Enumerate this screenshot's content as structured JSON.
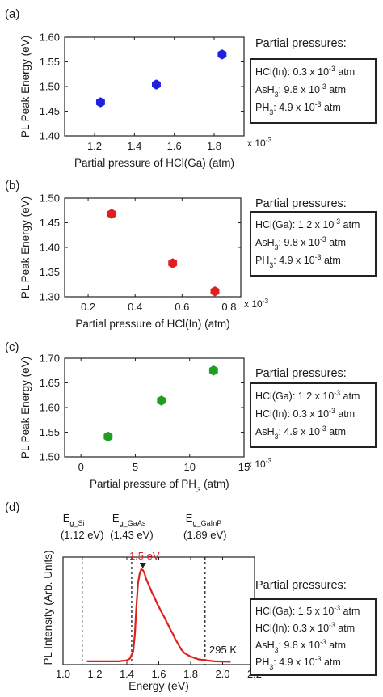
{
  "figure": {
    "panels": [
      {
        "letter": "(a)",
        "partial_title": "Partial pressures:",
        "conditions": [
          {
            "species": "HCl(In)",
            "sub": "",
            "value": "0.3 x 10",
            "exp": "-3",
            "unit": " atm"
          },
          {
            "species": "AsH",
            "sub": "3",
            "value": "9.8 x 10",
            "exp": "-3",
            "unit": " atm"
          },
          {
            "species": "PH",
            "sub": "3",
            "value": "4.9 x 10",
            "exp": "-3",
            "unit": " atm"
          }
        ]
      },
      {
        "letter": "(b)",
        "partial_title": "Partial pressures:",
        "conditions": [
          {
            "species": "HCl(Ga)",
            "sub": "",
            "value": "1.2 x 10",
            "exp": "-3",
            "unit": " atm"
          },
          {
            "species": "AsH",
            "sub": "3",
            "value": "9.8 x 10",
            "exp": "-3",
            "unit": " atm"
          },
          {
            "species": "PH",
            "sub": "3",
            "value": "4.9 x 10",
            "exp": "-3",
            "unit": " atm"
          }
        ]
      },
      {
        "letter": "(c)",
        "partial_title": "Partial pressures:",
        "conditions": [
          {
            "species": "HCl(Ga)",
            "sub": "",
            "value": "1.2 x 10",
            "exp": "-3",
            "unit": " atm"
          },
          {
            "species": "HCl(In)",
            "sub": "",
            "value": "0.3 x 10",
            "exp": "-3",
            "unit": " atm"
          },
          {
            "species": "AsH",
            "sub": "3",
            "value": "4.9 x 10",
            "exp": "-3",
            "unit": " atm"
          }
        ]
      },
      {
        "letter": "(d)",
        "partial_title": "Partial pressures:",
        "conditions": [
          {
            "species": "HCl(Ga)",
            "sub": "",
            "value": ": 1.5 x 10",
            "exp": "-3",
            "unit": " atm"
          },
          {
            "species": "HCl(In)",
            "sub": "",
            "value": ": 0.3 x 10",
            "exp": "-3",
            "unit": " atm"
          },
          {
            "species": "AsH",
            "sub": "3",
            "value": ": 9.8 x 10",
            "exp": "-3",
            "unit": " atm"
          },
          {
            "species": "PH",
            "sub": "3",
            "value": ": 4.9 x 10",
            "exp": "-3",
            "unit": " atm"
          }
        ]
      }
    ]
  },
  "chart_data": [
    {
      "type": "scatter",
      "ylabel": "PL Peak Energy (eV)",
      "xlabel": "Partial pressure of HCl(Ga) (atm)",
      "x_multiplier": "x 10-3",
      "xlim": [
        1.05,
        1.95
      ],
      "ylim": [
        1.4,
        1.6
      ],
      "xticks": [
        "1.2",
        "1.4",
        "1.6",
        "1.8"
      ],
      "yticks": [
        "1.40",
        "1.45",
        "1.50",
        "1.55",
        "1.60"
      ],
      "marker_color": "#1f1fe0",
      "points": [
        {
          "x": 1.23,
          "y": 1.468
        },
        {
          "x": 1.51,
          "y": 1.504
        },
        {
          "x": 1.84,
          "y": 1.565
        }
      ]
    },
    {
      "type": "scatter",
      "ylabel": "PL Peak Energy (eV)",
      "xlabel": "Partial pressure of HCl(In) (atm)",
      "x_multiplier": "x 10-3",
      "xlim": [
        0.1,
        0.85
      ],
      "ylim": [
        1.3,
        1.5
      ],
      "xticks": [
        "0.2",
        "0.4",
        "0.6",
        "0.8"
      ],
      "yticks": [
        "1.30",
        "1.35",
        "1.40",
        "1.45",
        "1.50"
      ],
      "marker_color": "#e01f1f",
      "points": [
        {
          "x": 0.3,
          "y": 1.468
        },
        {
          "x": 0.56,
          "y": 1.368
        },
        {
          "x": 0.74,
          "y": 1.311
        }
      ]
    },
    {
      "type": "scatter",
      "ylabel": "PL Peak Energy (eV)",
      "xlabel": "Partial pressure of PH3 (atm)",
      "x_multiplier": "x 10-3",
      "xlim": [
        -1.5,
        15
      ],
      "ylim": [
        1.5,
        1.7
      ],
      "xticks": [
        "0",
        "5",
        "10",
        "15"
      ],
      "yticks": [
        "1.50",
        "1.55",
        "1.60",
        "1.65",
        "1.70"
      ],
      "marker_color": "#1f9e1f",
      "points": [
        {
          "x": 2.5,
          "y": 1.541
        },
        {
          "x": 7.4,
          "y": 1.614
        },
        {
          "x": 12.2,
          "y": 1.675
        }
      ]
    },
    {
      "type": "line",
      "ylabel": "PL Intensity (Arb. Units)",
      "xlabel": "Energy (eV)",
      "xlim": [
        1.0,
        2.2
      ],
      "xticks": [
        "1.0",
        "1.2",
        "1.4",
        "1.6",
        "1.8",
        "2.0",
        "2.2"
      ],
      "line_color": "#e01f1f",
      "temperature": "295 K",
      "peak_label": "1.5 eV",
      "peak_x": 1.5,
      "markers": [
        {
          "x": 1.12,
          "name": "E",
          "sub": "g_Si",
          "value": "(1.12 eV)"
        },
        {
          "x": 1.43,
          "name": "E",
          "sub": "g_GaAs",
          "value": "(1.43 eV)"
        },
        {
          "x": 1.89,
          "name": "E",
          "sub": "g_GaInP",
          "value": "(1.89 eV)"
        }
      ],
      "spectrum": [
        [
          1.15,
          0.01
        ],
        [
          1.25,
          0.01
        ],
        [
          1.35,
          0.01
        ],
        [
          1.4,
          0.02
        ],
        [
          1.42,
          0.04
        ],
        [
          1.44,
          0.12
        ],
        [
          1.45,
          0.3
        ],
        [
          1.46,
          0.6
        ],
        [
          1.47,
          0.85
        ],
        [
          1.48,
          0.95
        ],
        [
          1.49,
          1.0
        ],
        [
          1.5,
          0.99
        ],
        [
          1.51,
          0.96
        ],
        [
          1.52,
          0.9
        ],
        [
          1.53,
          0.86
        ],
        [
          1.54,
          0.82
        ],
        [
          1.55,
          0.78
        ],
        [
          1.56,
          0.74
        ],
        [
          1.57,
          0.71
        ],
        [
          1.58,
          0.67
        ],
        [
          1.59,
          0.63
        ],
        [
          1.6,
          0.6
        ],
        [
          1.61,
          0.56
        ],
        [
          1.62,
          0.53
        ],
        [
          1.63,
          0.5
        ],
        [
          1.64,
          0.47
        ],
        [
          1.65,
          0.43
        ],
        [
          1.66,
          0.4
        ],
        [
          1.67,
          0.36
        ],
        [
          1.68,
          0.33
        ],
        [
          1.69,
          0.3
        ],
        [
          1.7,
          0.26
        ],
        [
          1.71,
          0.23
        ],
        [
          1.72,
          0.2
        ],
        [
          1.73,
          0.17
        ],
        [
          1.74,
          0.14
        ],
        [
          1.75,
          0.12
        ],
        [
          1.76,
          0.1
        ],
        [
          1.78,
          0.08
        ],
        [
          1.8,
          0.06
        ],
        [
          1.85,
          0.03
        ],
        [
          1.9,
          0.02
        ],
        [
          1.95,
          0.01
        ],
        [
          2.05,
          0.005
        ]
      ]
    }
  ]
}
